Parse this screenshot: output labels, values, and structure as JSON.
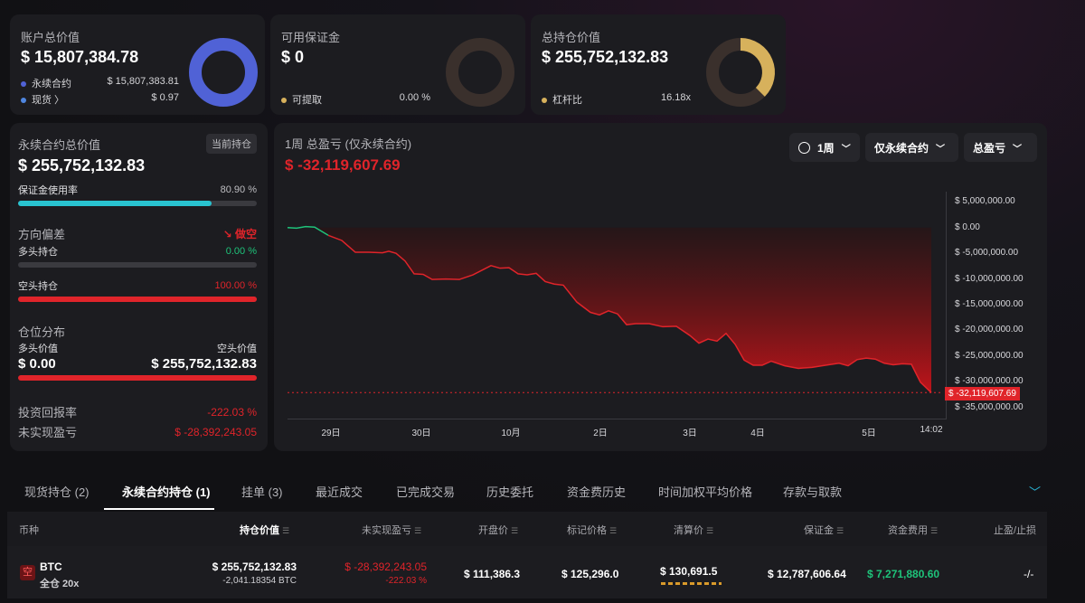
{
  "colors": {
    "red": "#e0242a",
    "green": "#1ec37a",
    "cyan": "#29c3d0",
    "blue": "#5062d6",
    "blue_light": "#4f86e0",
    "gold": "#d7b15c",
    "card": "#1c1c20"
  },
  "summary": {
    "account": {
      "title": "账户总价值",
      "value": "$ 15,807,384.78",
      "rows": [
        {
          "label": "永续合约",
          "value": "$ 15,807,383.81"
        },
        {
          "label": "现货 〉",
          "value": "$ 0.97"
        }
      ]
    },
    "margin": {
      "title": "可用保证金",
      "value": "$ 0",
      "rows": [
        {
          "label": "可提取",
          "value": "0.00 %"
        }
      ]
    },
    "position": {
      "title": "总持仓价值",
      "value": "$ 255,752,132.83",
      "rows": [
        {
          "label": "杠杆比",
          "value": "16.18x"
        }
      ]
    }
  },
  "perp": {
    "title": "永续合约总价值",
    "badge": "当前持仓",
    "value": "$ 255,752,132.83",
    "margin_usage_label": "保证金使用率",
    "margin_usage_value": "80.90 %",
    "margin_usage_fraction": 0.809,
    "direction_label": "方向偏差",
    "direction_value": "做空",
    "long_label": "多头持仓",
    "long_value": "0.00 %",
    "long_fraction": 0,
    "short_label": "空头持仓",
    "short_value": "100.00 %",
    "short_fraction": 1,
    "distribution_label": "仓位分布",
    "long_value_label": "多头价值",
    "short_value_label": "空头价值",
    "long_amount": "$ 0.00",
    "short_amount": "$ 255,752,132.83",
    "roi_label": "投资回报率",
    "roi_value": "-222.03 %",
    "upnl_label": "未实现盈亏",
    "upnl_value": "$ -28,392,243.05"
  },
  "pnl_chart": {
    "title": "1周 总盈亏 (仅永续合约)",
    "value": "$ -32,119,607.69",
    "period": "1周",
    "scope": "仅永续合约",
    "metric": "总盈亏",
    "current_label": "$ -32,119,607.69"
  },
  "chart_data": {
    "type": "area",
    "title": "1周 总盈亏 (仅永续合约)",
    "ylim": [
      -37000000,
      7000000
    ],
    "y_ticks": [
      5000000,
      0,
      -5000000,
      -10000000,
      -15000000,
      -20000000,
      -25000000,
      -30000000,
      -35000000
    ],
    "y_tick_labels": [
      "$ 5,000,000.00",
      "$ 0.00",
      "$ -5,000,000.00",
      "$ -10,000,000.00",
      "$ -15,000,000.00",
      "$ -20,000,000.00",
      "$ -25,000,000.00",
      "$ -30,000,000.00",
      "$ -35,000,000.00"
    ],
    "x_ticks": [
      {
        "label": "29日",
        "x": 48
      },
      {
        "label": "30日",
        "x": 148
      },
      {
        "label": "10月",
        "x": 247
      },
      {
        "label": "2日",
        "x": 346
      },
      {
        "label": "3日",
        "x": 445
      },
      {
        "label": "4日",
        "x": 520
      },
      {
        "label": "5日",
        "x": 643
      },
      {
        "label": "14:02",
        "x": 712
      }
    ],
    "xlim": [
      0,
      725
    ],
    "x": [
      0,
      10,
      20,
      30,
      45,
      60,
      75,
      90,
      105,
      112,
      120,
      130,
      140,
      150,
      160,
      175,
      190,
      205,
      215,
      225,
      235,
      245,
      255,
      265,
      275,
      285,
      295,
      305,
      320,
      335,
      345,
      355,
      365,
      375,
      385,
      400,
      415,
      430,
      445,
      455,
      465,
      475,
      485,
      495,
      505,
      515,
      525,
      535,
      550,
      565,
      580,
      595,
      610,
      620,
      630,
      640,
      650,
      660,
      670,
      680,
      690,
      700,
      712
    ],
    "y": [
      0,
      -100000,
      200000,
      100000,
      -1500000,
      -2500000,
      -4800000,
      -4800000,
      -4900000,
      -4600000,
      -5000000,
      -6500000,
      -9000000,
      -9100000,
      -10100000,
      -10000000,
      -10100000,
      -9200000,
      -8300000,
      -7400000,
      -7900000,
      -7800000,
      -9000000,
      -9200000,
      -8900000,
      -10500000,
      -11000000,
      -11200000,
      -14500000,
      -16500000,
      -17000000,
      -16200000,
      -16800000,
      -18900000,
      -18700000,
      -18700000,
      -19300000,
      -19200000,
      -21000000,
      -22500000,
      -21700000,
      -22100000,
      -20600000,
      -22700000,
      -25800000,
      -26800000,
      -26800000,
      -26000000,
      -26900000,
      -27400000,
      -27200000,
      -26800000,
      -26400000,
      -26900000,
      -25700000,
      -25400000,
      -25600000,
      -26400000,
      -26700000,
      -26500000,
      -26600000,
      -30100000,
      -32119607.69
    ],
    "series": [
      {
        "values_ref": "y"
      }
    ]
  },
  "tabs": [
    {
      "label": "现货持仓 (2)"
    },
    {
      "label": "永续合约持仓 (1)"
    },
    {
      "label": "挂单 (3)"
    },
    {
      "label": "最近成交"
    },
    {
      "label": "已完成交易"
    },
    {
      "label": "历史委托"
    },
    {
      "label": "资金费历史"
    },
    {
      "label": "时间加权平均价格"
    },
    {
      "label": "存款与取款"
    }
  ],
  "table": {
    "headers": [
      "币种",
      "持仓价值",
      "未实现盈亏",
      "开盘价",
      "标记价格",
      "清算价",
      "保证金",
      "资金费用",
      "止盈/止损"
    ],
    "row": {
      "badge": "空",
      "coin": "BTC",
      "mode": "全仓 20x",
      "position_value": "$ 255,752,132.83",
      "position_size": "-2,041.18354 BTC",
      "upnl": "$ -28,392,243.05",
      "upnl_pct": "-222.03 %",
      "entry_price": "$ 111,386.3",
      "mark_price": "$ 125,296.0",
      "liq_price": "$ 130,691.5",
      "margin": "$ 12,787,606.64",
      "funding": "$ 7,271,880.60",
      "tpsl": "-/-"
    }
  }
}
